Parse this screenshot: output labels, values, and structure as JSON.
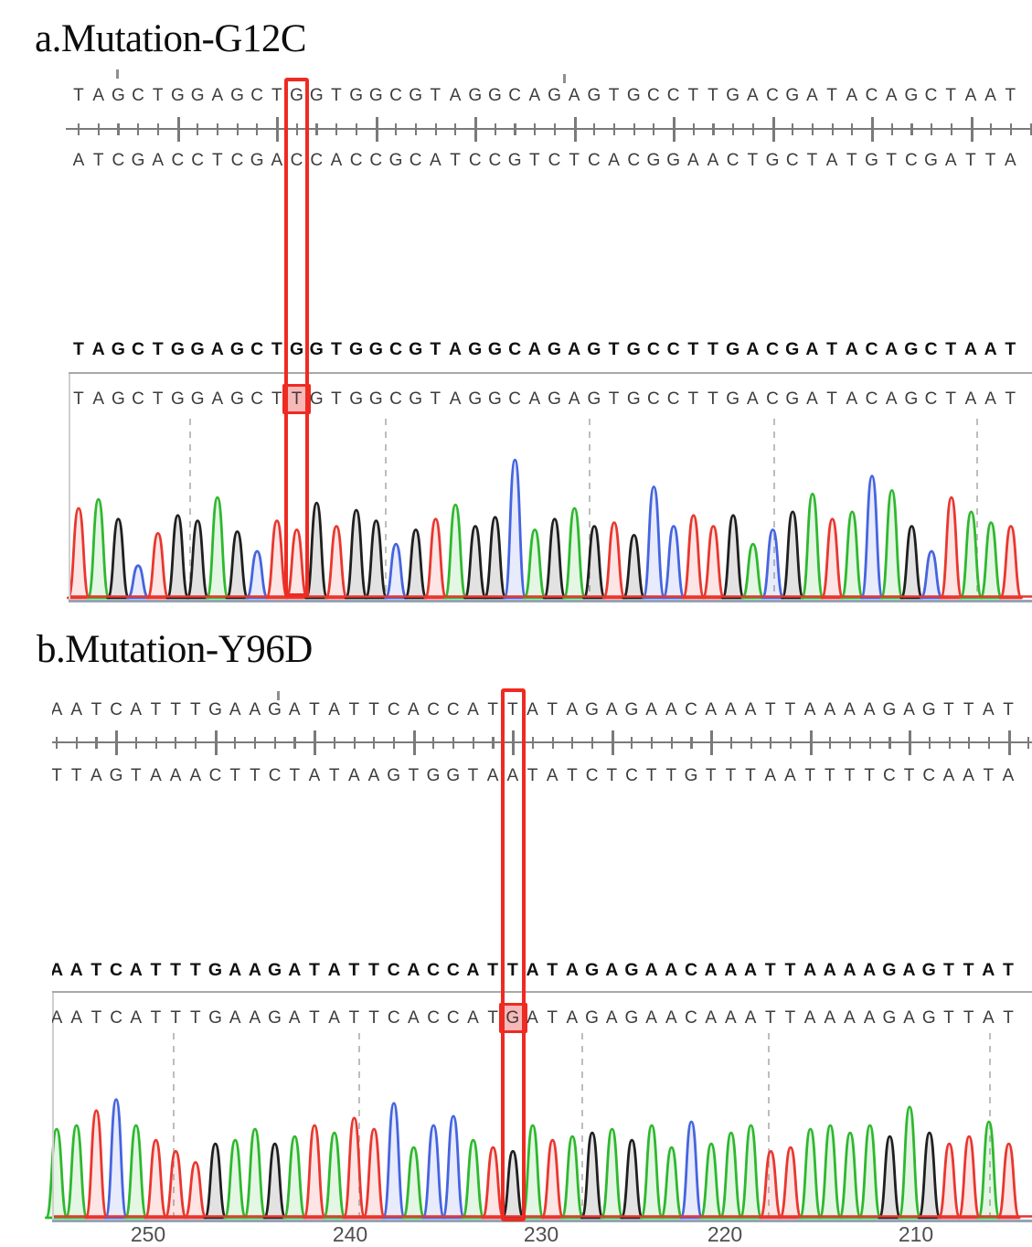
{
  "figure": {
    "panels": [
      {
        "label": "a.Mutation-G12C",
        "map": {
          "top_strand": "TAGCTGGAGCTGGTGGCGTAGGCAGAGTGCCTTGACGATACAGCTAAT",
          "bottom_strand": "ATCGACCTCGACCACCGCATCCGTCTCACGGAACTGCTATGTCGATTA",
          "highlight_index": 11,
          "highlight_top_base": "G",
          "highlight_bottom_base": "C"
        },
        "alignment": {
          "reference": "TAGCTGGAGCTGGTGGCGTAGGCAGAGTGCCTTGACGATACAGCTAAT",
          "query": "TAGCTGGAGCTTGTGGCGTAGGCAGAGTGCCTTGACGATACAGCTAAT",
          "highlight_index": 11,
          "reference_base": "G",
          "query_base": "T"
        },
        "chromatogram": {
          "type": "line",
          "sequence": "TAGCTGGAGCTTGTGGCGTAGGCAGAGTGCCTTGACGATACAGCTAAT",
          "peak_heights": [
            0.5,
            0.55,
            0.44,
            0.18,
            0.36,
            0.46,
            0.43,
            0.56,
            0.37,
            0.26,
            0.43,
            0.38,
            0.53,
            0.4,
            0.49,
            0.43,
            0.3,
            0.38,
            0.44,
            0.52,
            0.4,
            0.45,
            0.77,
            0.38,
            0.44,
            0.5,
            0.4,
            0.42,
            0.35,
            0.62,
            0.4,
            0.46,
            0.4,
            0.46,
            0.3,
            0.38,
            0.48,
            0.58,
            0.44,
            0.48,
            0.68,
            0.6,
            0.4,
            0.26,
            0.56,
            0.48,
            0.42,
            0.4
          ],
          "position_labels": []
        }
      },
      {
        "label": "b.Mutation-Y96D",
        "map": {
          "top_strand": "AATCATTTGAAGATATTCACCATTATAGAGAACAAATTAAAAGAGTTAT",
          "bottom_strand": "TTAGTAAACTTCTATAAGTGGTAATATCTCTTGTTTAATTTTCTCAATA",
          "highlight_index": 23,
          "highlight_top_base": "T",
          "highlight_bottom_base": "A"
        },
        "alignment": {
          "reference": "AATCATTTGAAGATATTCACCATTATAGAGAACAAATTAAAAGAGTTAT",
          "query": "AATCATTTGAAGATATTCACCATGATAGAGAACAAATTAAAAGAGTTAT",
          "highlight_index": 23,
          "reference_base": "T",
          "query_base": "G"
        },
        "chromatogram": {
          "type": "line",
          "sequence": "AATCATTTGAAGATATTCACCATGATAGAGAACAAATTAAAAGAGTTAT",
          "peak_heights": [
            0.48,
            0.5,
            0.58,
            0.64,
            0.5,
            0.42,
            0.36,
            0.3,
            0.4,
            0.42,
            0.48,
            0.4,
            0.44,
            0.5,
            0.46,
            0.54,
            0.48,
            0.62,
            0.38,
            0.5,
            0.55,
            0.42,
            0.38,
            0.36,
            0.5,
            0.42,
            0.44,
            0.46,
            0.48,
            0.42,
            0.5,
            0.38,
            0.52,
            0.4,
            0.46,
            0.5,
            0.36,
            0.38,
            0.48,
            0.5,
            0.46,
            0.5,
            0.44,
            0.6,
            0.46,
            0.4,
            0.44,
            0.52,
            0.4
          ],
          "position_labels": [
            "250",
            "240",
            "230",
            "220",
            "210"
          ]
        }
      }
    ]
  },
  "colors": {
    "trace_A": "#2eb82e",
    "trace_C": "#4664e0",
    "trace_G": "#1f1f1f",
    "trace_T": "#e8372f",
    "highlight_box": "#ee2b22",
    "ruler": "#7a7a7a",
    "gridline": "#bdbdbd"
  }
}
